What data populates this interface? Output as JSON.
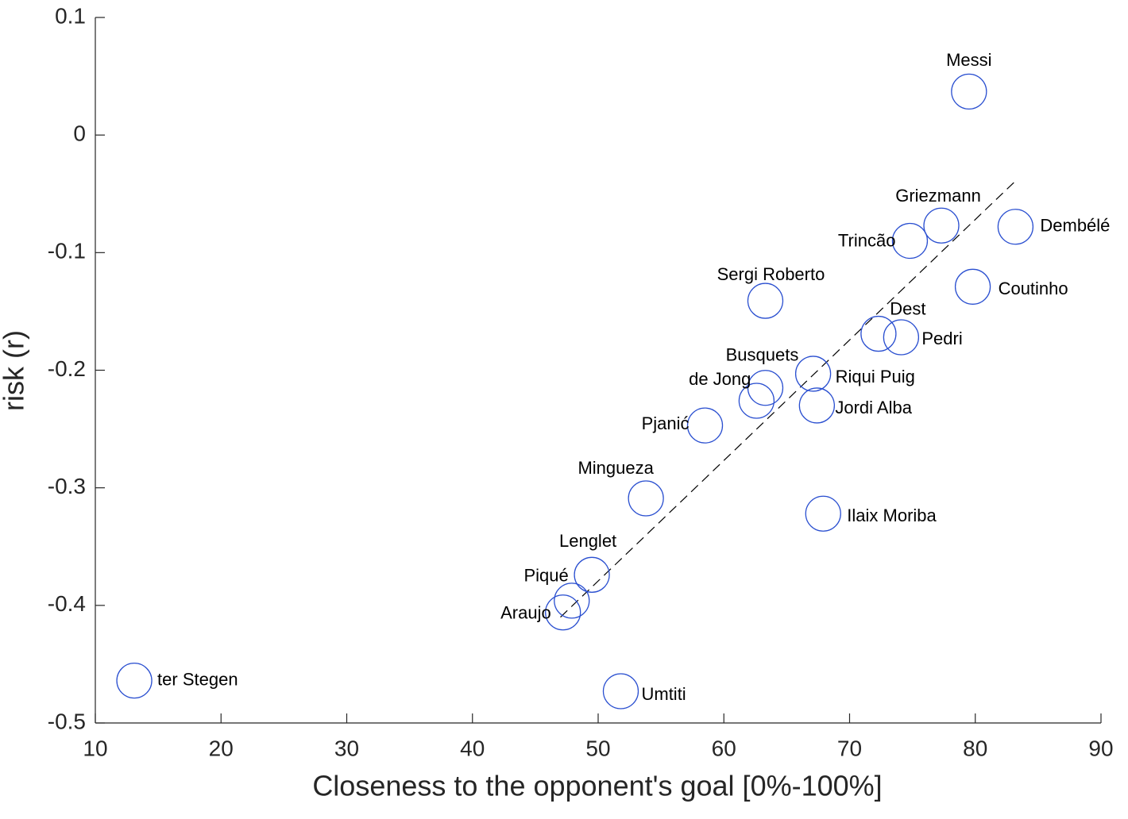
{
  "chart_data": {
    "type": "scatter",
    "xlabel": "Closeness to the opponent's goal [0%-100%]",
    "ylabel": "risk (r)",
    "xlim": [
      10,
      90
    ],
    "ylim": [
      -0.5,
      0.1
    ],
    "xticks": [
      10,
      20,
      30,
      40,
      50,
      60,
      70,
      80,
      90
    ],
    "yticks": [
      -0.5,
      -0.4,
      -0.3,
      -0.2,
      -0.1,
      0,
      0.1
    ],
    "color": "#2a4fd0",
    "labels": [
      "Messi",
      "Griezmann",
      "Dembélé",
      "Trincão",
      "Coutinho",
      "Sergi Roberto",
      "Dest",
      "Pedri",
      "Riqui Puig",
      "Busquets",
      "de Jong",
      "Jordi Alba",
      "Pjanić",
      "Mingueza",
      "Ilaix Moriba",
      "Lenglet",
      "Piqué",
      "Araujo",
      "ter Stegen",
      "Umtiti"
    ],
    "x": [
      79.5,
      77.3,
      83.2,
      74.8,
      79.8,
      63.3,
      72.3,
      74.1,
      67.1,
      63.3,
      62.6,
      67.4,
      58.5,
      53.8,
      67.9,
      49.5,
      47.9,
      47.2,
      13.1,
      51.8
    ],
    "y": [
      0.037,
      -0.077,
      -0.078,
      -0.09,
      -0.129,
      -0.141,
      -0.169,
      -0.172,
      -0.203,
      -0.215,
      -0.226,
      -0.23,
      -0.247,
      -0.309,
      -0.322,
      -0.374,
      -0.396,
      -0.406,
      -0.464,
      -0.473
    ],
    "trend_line": {
      "x": [
        47,
        83.3
      ],
      "y": [
        -0.41,
        -0.038
      ],
      "color": "#000000"
    }
  }
}
